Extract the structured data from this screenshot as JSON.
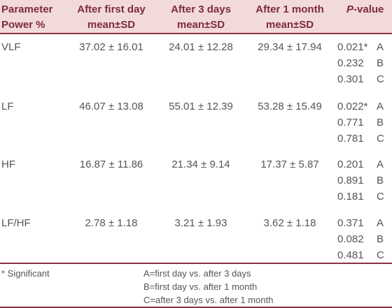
{
  "table": {
    "header": {
      "columns": [
        [
          "Parameter",
          "Power %"
        ],
        [
          "After first day",
          "mean±SD"
        ],
        [
          "After 3 days",
          "mean±SD"
        ],
        [
          "After 1 month",
          "mean±SD"
        ]
      ],
      "p_value": {
        "italic": "P",
        "rest": "-value"
      }
    },
    "rows": [
      {
        "parameter": "VLF",
        "values": [
          "37.02 ± 16.01",
          "24.01 ± 12.28",
          "29.34 ± 17.94"
        ],
        "p_values": [
          [
            "0.021*",
            "A"
          ],
          [
            "0.232",
            "B"
          ],
          [
            "0.301",
            "C"
          ]
        ]
      },
      {
        "parameter": "LF",
        "values": [
          "46.07 ± 13.08",
          "55.01 ± 12.39",
          "53.28 ± 15.49"
        ],
        "p_values": [
          [
            "0.022*",
            "A"
          ],
          [
            "0.771",
            "B"
          ],
          [
            "0.781",
            "C"
          ]
        ]
      },
      {
        "parameter": "HF",
        "values": [
          "16.87 ± 11.86",
          "21.34 ± 9.14",
          "17.37 ± 5.87"
        ],
        "p_values": [
          [
            "0.201",
            "A"
          ],
          [
            "0.891",
            "B"
          ],
          [
            "0.181",
            "C"
          ]
        ]
      },
      {
        "parameter": "LF/HF",
        "values": [
          "2.78 ± 1.18",
          "3.21 ± 1.93",
          "3.62 ± 1.18"
        ],
        "p_values": [
          [
            "0.371",
            "A"
          ],
          [
            "0.082",
            "B"
          ],
          [
            "0.481",
            "C"
          ]
        ]
      }
    ],
    "footnote": "* Significant",
    "legend": [
      "A=first day vs. after 3 days",
      "B=first day vs. after 1 month",
      "C=after 3 days vs. after 1 month"
    ]
  }
}
